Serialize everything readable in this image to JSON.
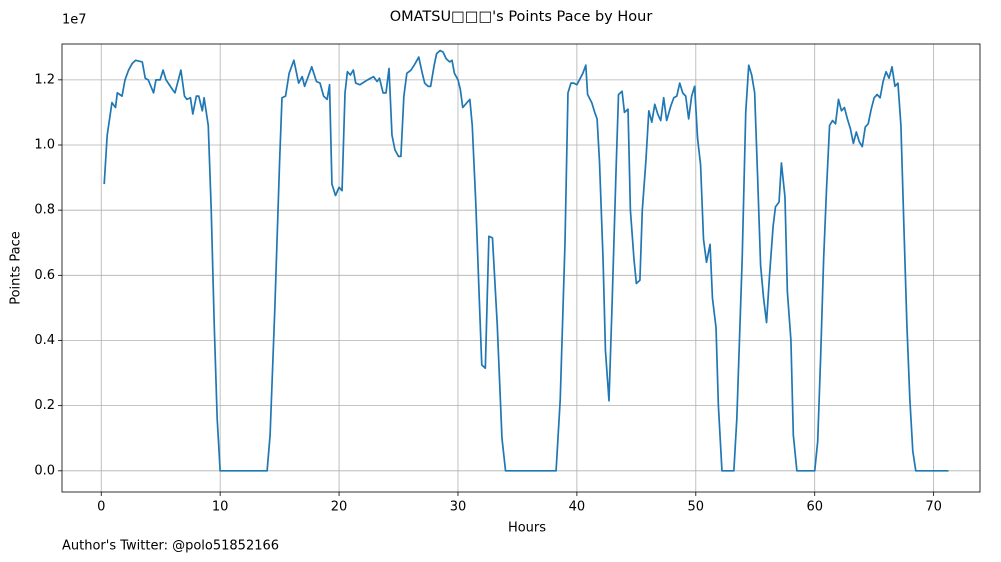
{
  "chart_data": {
    "type": "line",
    "title": "OMATSU□□□'s Points Pace by Hour",
    "x_label": "Hours",
    "y_label": "Points Pace",
    "y_offset_label": "1e7",
    "footer": "Author's Twitter: @polo51852166",
    "color": "#1f77b4",
    "grid": true,
    "xlim": [
      -3.3,
      73.9
    ],
    "ylim": [
      -650000,
      13100000
    ],
    "xticks": [
      0,
      10,
      20,
      30,
      40,
      50,
      60,
      70
    ],
    "yticks": [
      {
        "value": 0,
        "label": "0.0"
      },
      {
        "value": 2000000,
        "label": "0.2"
      },
      {
        "value": 4000000,
        "label": "0.4"
      },
      {
        "value": 6000000,
        "label": "0.6"
      },
      {
        "value": 8000000,
        "label": "0.8"
      },
      {
        "value": 10000000,
        "label": "1.0"
      },
      {
        "value": 12000000,
        "label": "1.2"
      }
    ],
    "x": [
      0.25,
      0.5,
      0.9,
      1.2,
      1.35,
      1.75,
      2,
      2.3,
      2.6,
      2.9,
      3.45,
      3.7,
      3.95,
      4.4,
      4.6,
      4.95,
      5.2,
      5.45,
      6,
      6.2,
      6.7,
      7,
      7.2,
      7.5,
      7.7,
      8,
      8.2,
      8.5,
      8.65,
      9,
      9.25,
      9.5,
      9.75,
      10,
      13.95,
      14.2,
      14.6,
      15,
      15.2,
      15.5,
      15.8,
      16.2,
      16.6,
      16.9,
      17.1,
      17.7,
      18.1,
      18.4,
      18.7,
      19,
      19.2,
      19.4,
      19.7,
      20,
      20.25,
      20.5,
      20.7,
      20.95,
      21.2,
      21.4,
      21.75,
      22.4,
      22.9,
      23.2,
      23.4,
      23.7,
      23.95,
      24.2,
      24.45,
      24.7,
      25,
      25.2,
      25.45,
      25.7,
      26.05,
      26.4,
      26.7,
      27,
      27.2,
      27.5,
      27.7,
      28,
      28.2,
      28.5,
      28.75,
      29,
      29.3,
      29.5,
      29.7,
      30,
      30.2,
      30.4,
      30.75,
      31,
      31.2,
      31.5,
      31.8,
      32,
      32.3,
      32.6,
      32.9,
      33.3,
      33.7,
      34,
      38.25,
      38.6,
      39,
      39.25,
      39.5,
      39.75,
      40,
      40.5,
      40.75,
      40.9,
      41.25,
      41.5,
      41.7,
      41.9,
      42.2,
      42.4,
      42.7,
      42.95,
      43.3,
      43.5,
      43.8,
      44,
      44.3,
      44.5,
      44.8,
      45,
      45.3,
      45.5,
      45.8,
      46.05,
      46.3,
      46.55,
      46.8,
      47.05,
      47.3,
      47.55,
      47.9,
      48.15,
      48.4,
      48.65,
      48.9,
      49.15,
      49.4,
      49.65,
      49.9,
      50.15,
      50.4,
      50.65,
      50.9,
      51.2,
      51.4,
      51.7,
      51.9,
      52.2,
      53.2,
      53.45,
      53.9,
      54.2,
      54.45,
      54.7,
      54.95,
      55.2,
      55.45,
      55.7,
      55.95,
      56.2,
      56.5,
      56.7,
      57,
      57.2,
      57.5,
      57.7,
      58,
      58.2,
      58.5,
      60,
      60.25,
      60.5,
      60.75,
      61,
      61.25,
      61.5,
      61.75,
      62,
      62.25,
      62.5,
      62.75,
      63,
      63.25,
      63.5,
      63.75,
      64,
      64.25,
      64.5,
      64.75,
      65,
      65.25,
      65.5,
      65.75,
      66,
      66.25,
      66.5,
      66.75,
      67,
      67.25,
      67.5,
      67.75,
      68,
      68.25,
      68.5,
      71.25
    ],
    "values": [
      8800000,
      10300000,
      11300000,
      11150000,
      11600000,
      11500000,
      12000000,
      12300000,
      12500000,
      12600000,
      12550000,
      12050000,
      12000000,
      11600000,
      12000000,
      12000000,
      12300000,
      12000000,
      11700000,
      11600000,
      12300000,
      11500000,
      11400000,
      11450000,
      10950000,
      11500000,
      11500000,
      11050000,
      11450000,
      10600000,
      8000000,
      4500000,
      1600000,
      0,
      0,
      1100000,
      5000000,
      9500000,
      11450000,
      11500000,
      12200000,
      12600000,
      11900000,
      12100000,
      11800000,
      12400000,
      11950000,
      11900000,
      11500000,
      11400000,
      11850000,
      8800000,
      8450000,
      8700000,
      8600000,
      11600000,
      12250000,
      12150000,
      12300000,
      11900000,
      11850000,
      12000000,
      12100000,
      11950000,
      12050000,
      11600000,
      11600000,
      12350000,
      10300000,
      9850000,
      9650000,
      9650000,
      11500000,
      12200000,
      12300000,
      12500000,
      12700000,
      12200000,
      11900000,
      11800000,
      11800000,
      12450000,
      12800000,
      12900000,
      12850000,
      12650000,
      12550000,
      12600000,
      12200000,
      12000000,
      11700000,
      11150000,
      11300000,
      11400000,
      10600000,
      8200000,
      5200000,
      3250000,
      3150000,
      7200000,
      7150000,
      4500000,
      1000000,
      0,
      0,
      2200000,
      7000000,
      11600000,
      11900000,
      11900000,
      11850000,
      12200000,
      12450000,
      11550000,
      11300000,
      11000000,
      10800000,
      9500000,
      6500000,
      3700000,
      2150000,
      5000000,
      9300000,
      11550000,
      11650000,
      11000000,
      11100000,
      8000000,
      6500000,
      5750000,
      5850000,
      8000000,
      9500000,
      11050000,
      10700000,
      11250000,
      10950000,
      10750000,
      11450000,
      10750000,
      11200000,
      11450000,
      11500000,
      11900000,
      11600000,
      11500000,
      10800000,
      11500000,
      11800000,
      10200000,
      9400000,
      7100000,
      6400000,
      6950000,
      5300000,
      4400000,
      2000000,
      0,
      0,
      1600000,
      6500000,
      11000000,
      12450000,
      12150000,
      11600000,
      9000000,
      6300000,
      5300000,
      4550000,
      6000000,
      7500000,
      8100000,
      8250000,
      9450000,
      8400000,
      5500000,
      4000000,
      1100000,
      0,
      0,
      900000,
      3500000,
      6500000,
      8700000,
      10600000,
      10750000,
      10650000,
      11400000,
      11050000,
      11150000,
      10800000,
      10500000,
      10050000,
      10400000,
      10100000,
      9950000,
      10550000,
      10650000,
      11100000,
      11450000,
      11550000,
      11450000,
      11950000,
      12250000,
      12050000,
      12400000,
      11800000,
      11900000,
      10600000,
      7500000,
      4500000,
      2200000,
      600000,
      0,
      0
    ]
  }
}
